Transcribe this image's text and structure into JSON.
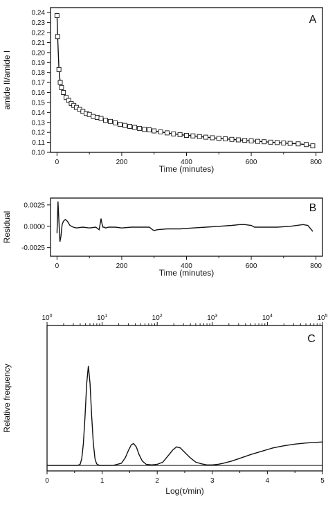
{
  "chart_data": [
    {
      "panel": "A",
      "type": "scatter",
      "xlabel": "Time (minutes)",
      "ylabel": "amide II/amide I",
      "xlim": [
        -20,
        820
      ],
      "ylim": [
        0.1,
        0.245
      ],
      "xticks": [
        0,
        200,
        400,
        600,
        800
      ],
      "yticks": [
        0.1,
        0.11,
        0.12,
        0.13,
        0.14,
        0.15,
        0.16,
        0.17,
        0.18,
        0.19,
        0.2,
        0.21,
        0.22,
        0.23,
        0.24
      ],
      "ytick_labels": [
        "0.10",
        "0.11",
        "0.12",
        "0.13",
        "0.14",
        "0.15",
        "0.16",
        "0.17",
        "0.18",
        "0.19",
        "0.20",
        "0.21",
        "0.22",
        "0.23",
        "0.24"
      ],
      "grid": false,
      "series": [
        {
          "marker": "open-square",
          "with_fit_line": true,
          "x": [
            0,
            2,
            6,
            10,
            14,
            20,
            28,
            36,
            44,
            52,
            60,
            70,
            80,
            90,
            100,
            112,
            124,
            136,
            150,
            165,
            180,
            195,
            210,
            225,
            240,
            255,
            270,
            285,
            300,
            320,
            340,
            360,
            380,
            400,
            420,
            440,
            460,
            480,
            500,
            520,
            540,
            560,
            580,
            600,
            620,
            640,
            660,
            680,
            700,
            720,
            745,
            770,
            790
          ],
          "y": [
            0.237,
            0.216,
            0.183,
            0.17,
            0.165,
            0.16,
            0.155,
            0.152,
            0.149,
            0.147,
            0.145,
            0.143,
            0.141,
            0.139,
            0.138,
            0.136,
            0.135,
            0.134,
            0.132,
            0.131,
            0.1295,
            0.128,
            0.127,
            0.126,
            0.125,
            0.124,
            0.123,
            0.1225,
            0.1215,
            0.1205,
            0.1195,
            0.1185,
            0.1178,
            0.117,
            0.1165,
            0.1158,
            0.1152,
            0.1146,
            0.114,
            0.1135,
            0.113,
            0.1125,
            0.112,
            0.1115,
            0.111,
            0.1106,
            0.1102,
            0.1098,
            0.1094,
            0.109,
            0.1085,
            0.1078,
            0.1065
          ]
        }
      ]
    },
    {
      "panel": "B",
      "type": "line",
      "xlabel": "Time (minutes)",
      "ylabel": "Residual",
      "xlim": [
        -20,
        820
      ],
      "ylim": [
        -0.0035,
        0.0033
      ],
      "xticks": [
        0,
        200,
        400,
        600,
        800
      ],
      "yticks": [
        -0.0025,
        0.0,
        0.0025
      ],
      "ytick_labels": [
        "-0.0025",
        "0.0000",
        "0.0025"
      ],
      "grid": false,
      "series": [
        {
          "x": [
            0,
            3,
            6,
            9,
            12,
            16,
            20,
            26,
            32,
            40,
            50,
            60,
            80,
            100,
            120,
            130,
            133,
            136,
            139,
            142,
            146,
            150,
            160,
            180,
            200,
            230,
            260,
            285,
            295,
            300,
            310,
            340,
            380,
            420,
            460,
            500,
            540,
            565,
            580,
            600,
            610,
            640,
            680,
            720,
            760,
            775,
            790
          ],
          "y": [
            -0.0008,
            0.0029,
            0.0005,
            -0.0018,
            -0.0012,
            0.0002,
            0.0006,
            0.0008,
            0.0006,
            0.0001,
            -0.0001,
            -0.0002,
            -0.0001,
            -0.0002,
            -0.0001,
            -0.0004,
            0.0002,
            0.0009,
            0.0003,
            -0.0001,
            -0.0001,
            -0.0002,
            -0.0001,
            -0.0001,
            -0.0002,
            -0.0001,
            -0.0001,
            -0.0001,
            -0.0004,
            -0.0005,
            -0.0004,
            -0.0003,
            -0.0003,
            -0.0002,
            -0.0001,
            0.0,
            0.0001,
            0.0002,
            0.0002,
            0.0001,
            -0.0001,
            -0.0001,
            -0.0001,
            0.0,
            0.0002,
            0.0001,
            -0.0006
          ]
        }
      ]
    },
    {
      "panel": "C",
      "type": "line",
      "xlabel": "Log(τ/min)",
      "ylabel": "Relative frequency",
      "xlim": [
        0,
        5
      ],
      "ylim": [
        -0.05,
        1.28
      ],
      "xticks": [
        0,
        1,
        2,
        3,
        4,
        5
      ],
      "top_axis_ticks": [
        0,
        1,
        2,
        3,
        4,
        5
      ],
      "top_axis_tick_labels": [
        {
          "base": "10",
          "exp": "0"
        },
        {
          "base": "10",
          "exp": "1"
        },
        {
          "base": "10",
          "exp": "2"
        },
        {
          "base": "10",
          "exp": "3"
        },
        {
          "base": "10",
          "exp": "4"
        },
        {
          "base": "10",
          "exp": "5"
        }
      ],
      "baseline": 0,
      "grid": false,
      "series": [
        {
          "x": [
            0.0,
            0.55,
            0.6,
            0.63,
            0.66,
            0.69,
            0.72,
            0.75,
            0.78,
            0.81,
            0.84,
            0.87,
            0.9,
            0.95,
            1.0,
            1.2,
            1.35,
            1.42,
            1.48,
            1.53,
            1.57,
            1.62,
            1.67,
            1.73,
            1.8,
            1.9,
            2.0,
            2.1,
            2.2,
            2.28,
            2.35,
            2.42,
            2.5,
            2.6,
            2.7,
            2.8,
            2.9,
            3.0,
            3.1,
            3.2,
            3.35,
            3.5,
            3.7,
            3.9,
            4.1,
            4.3,
            4.5,
            4.7,
            4.85,
            5.0
          ],
          "y": [
            0.0,
            0.0,
            0.01,
            0.06,
            0.2,
            0.45,
            0.75,
            0.91,
            0.75,
            0.45,
            0.2,
            0.06,
            0.015,
            0.0,
            0.0,
            0.0,
            0.02,
            0.07,
            0.14,
            0.19,
            0.2,
            0.17,
            0.1,
            0.04,
            0.01,
            0.005,
            0.01,
            0.03,
            0.09,
            0.14,
            0.17,
            0.16,
            0.12,
            0.07,
            0.03,
            0.015,
            0.005,
            0.005,
            0.01,
            0.02,
            0.04,
            0.065,
            0.1,
            0.13,
            0.16,
            0.18,
            0.195,
            0.205,
            0.21,
            0.215
          ]
        }
      ]
    }
  ]
}
